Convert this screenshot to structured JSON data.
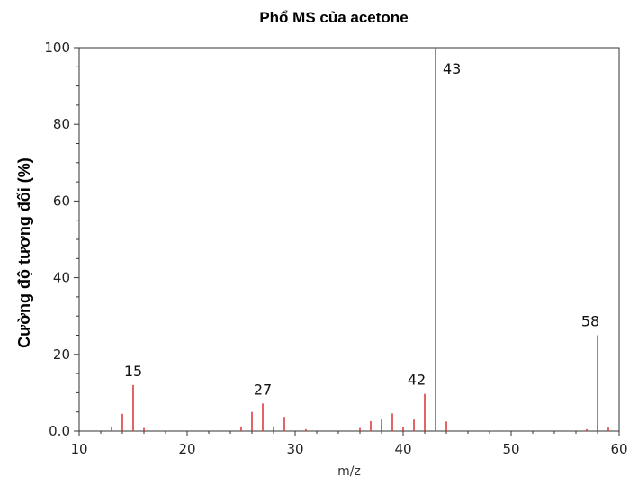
{
  "chart_data": {
    "type": "bar",
    "title": "Phổ MS của acetone",
    "xlabel": "m/z",
    "ylabel": "Cường độ tương đối (%)",
    "xlim": [
      10,
      60
    ],
    "ylim": [
      0,
      100
    ],
    "x_ticks": [
      "10",
      "20",
      "30",
      "40",
      "50",
      "60"
    ],
    "y_ticks": [
      "0.0",
      "20",
      "40",
      "60",
      "80",
      "100"
    ],
    "grid": false,
    "bar_color": "#e03c3c",
    "axis_color": "#333333",
    "peaks": [
      {
        "mz": 13,
        "intensity": 1.0
      },
      {
        "mz": 14,
        "intensity": 4.5
      },
      {
        "mz": 15,
        "intensity": 12.0
      },
      {
        "mz": 16,
        "intensity": 0.8
      },
      {
        "mz": 25,
        "intensity": 1.2
      },
      {
        "mz": 26,
        "intensity": 5.0
      },
      {
        "mz": 27,
        "intensity": 7.2
      },
      {
        "mz": 28,
        "intensity": 1.2
      },
      {
        "mz": 29,
        "intensity": 3.7
      },
      {
        "mz": 31,
        "intensity": 0.5
      },
      {
        "mz": 36,
        "intensity": 0.8
      },
      {
        "mz": 37,
        "intensity": 2.6
      },
      {
        "mz": 38,
        "intensity": 3.0
      },
      {
        "mz": 39,
        "intensity": 4.6
      },
      {
        "mz": 40,
        "intensity": 1.1
      },
      {
        "mz": 41,
        "intensity": 3.0
      },
      {
        "mz": 42,
        "intensity": 9.7
      },
      {
        "mz": 43,
        "intensity": 100
      },
      {
        "mz": 44,
        "intensity": 2.5
      },
      {
        "mz": 57,
        "intensity": 0.5
      },
      {
        "mz": 58,
        "intensity": 25.0
      },
      {
        "mz": 59,
        "intensity": 0.9
      }
    ],
    "annotations": [
      {
        "text": "15",
        "mz": 15
      },
      {
        "text": "27",
        "mz": 27
      },
      {
        "text": "42",
        "mz": 42
      },
      {
        "text": "43",
        "mz": 43
      },
      {
        "text": "58",
        "mz": 58
      }
    ]
  }
}
